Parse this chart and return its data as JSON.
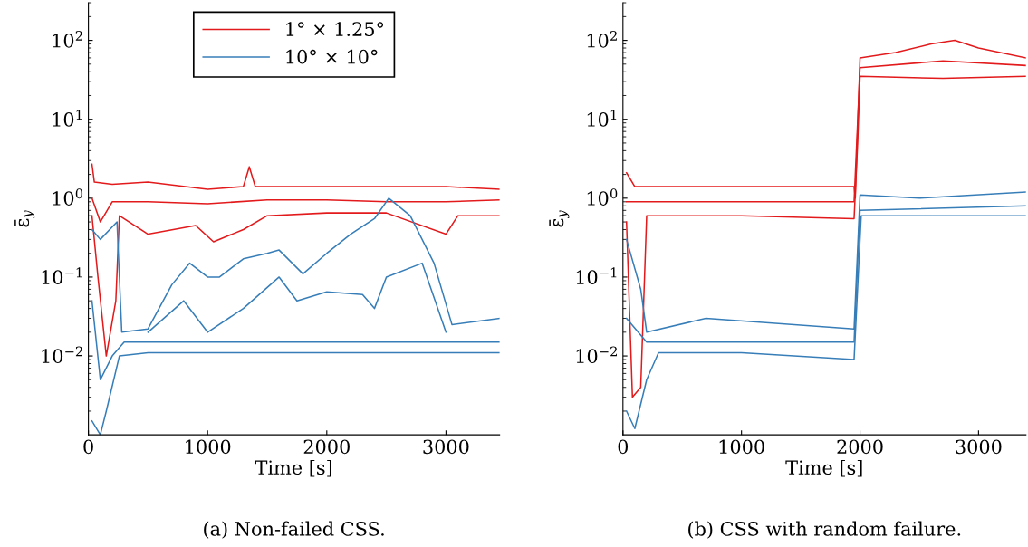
{
  "chart_data": [
    {
      "type": "line",
      "xlabel": "Time [s]",
      "ylabel": "ε̄$_{y}$",
      "log": "y",
      "grid": false,
      "legend": "top",
      "marker": "none",
      "line_style": "solid",
      "xlim": [
        0,
        3450
      ],
      "xticks": [
        0,
        1000,
        2000,
        3000
      ],
      "ylim": [
        0.001,
        300
      ],
      "yticks": [
        {
          "value": 0.01,
          "label": "10$^{−2}$"
        },
        {
          "value": 0.1,
          "label": "10$^{−1}$"
        },
        {
          "value": 1,
          "label": "10$^{0}$"
        },
        {
          "value": 10,
          "label": "10$^{1}$"
        },
        {
          "value": 100,
          "label": "10$^{2}$"
        }
      ],
      "annotations": [
        "(a) Non-failed CSS."
      ],
      "series": [
        {
          "name": "1° × 1.25°",
          "color": "#e31a1c",
          "x": [
            30,
            50,
            200,
            500,
            1000,
            1300,
            1350,
            1400,
            2000,
            2500,
            3000,
            3450
          ],
          "values": [
            2.7,
            1.6,
            1.5,
            1.6,
            1.3,
            1.4,
            2.5,
            1.4,
            1.4,
            1.4,
            1.4,
            1.3
          ]
        },
        {
          "color": "#e31a1c",
          "x": [
            30,
            100,
            200,
            500,
            1000,
            1500,
            2000,
            2500,
            3000,
            3450
          ],
          "values": [
            1.0,
            0.5,
            0.9,
            0.9,
            0.85,
            0.95,
            0.95,
            0.9,
            0.9,
            0.95
          ]
        },
        {
          "color": "#e31a1c",
          "x": [
            30,
            80,
            150,
            230,
            260,
            500,
            900,
            1050,
            1300,
            1500,
            2000,
            2500,
            3000,
            3100,
            3450
          ],
          "values": [
            0.6,
            0.1,
            0.01,
            0.05,
            0.6,
            0.35,
            0.45,
            0.28,
            0.4,
            0.6,
            0.65,
            0.65,
            0.35,
            0.6,
            0.6
          ]
        },
        {
          "name": "10° × 10°",
          "color": "#377eb8",
          "x": [
            30,
            100,
            240,
            280,
            500,
            700,
            850,
            1000,
            1100,
            1300,
            1500,
            1600,
            1800,
            2000,
            2200,
            2400,
            2520,
            2700,
            2900,
            3050,
            3450
          ],
          "values": [
            0.4,
            0.3,
            0.5,
            0.02,
            0.022,
            0.08,
            0.15,
            0.1,
            0.1,
            0.17,
            0.2,
            0.22,
            0.11,
            0.2,
            0.35,
            0.55,
            1.0,
            0.6,
            0.15,
            0.025,
            0.03
          ]
        },
        {
          "color": "#377eb8",
          "x": [
            500,
            800,
            1000,
            1300,
            1600,
            1750,
            2000,
            2300,
            2400,
            2500,
            2800,
            3000
          ],
          "values": [
            0.02,
            0.05,
            0.02,
            0.04,
            0.1,
            0.05,
            0.065,
            0.06,
            0.04,
            0.1,
            0.15,
            0.02
          ]
        },
        {
          "color": "#377eb8",
          "x": [
            30,
            100,
            200,
            300,
            1000,
            2000,
            3000,
            3450
          ],
          "values": [
            0.05,
            0.005,
            0.01,
            0.015,
            0.015,
            0.015,
            0.015,
            0.015
          ]
        },
        {
          "color": "#377eb8",
          "x": [
            30,
            100,
            150,
            260,
            500,
            1000,
            2000,
            3000,
            3450
          ],
          "values": [
            0.0015,
            0.001,
            0.002,
            0.01,
            0.011,
            0.011,
            0.011,
            0.011,
            0.011
          ]
        }
      ]
    },
    {
      "type": "line",
      "xlabel": "Time [s]",
      "ylabel": "ε̄$_{y}$",
      "log": "y",
      "grid": false,
      "marker": "none",
      "line_style": "solid",
      "xlim": [
        0,
        3400
      ],
      "xticks": [
        0,
        1000,
        2000,
        3000
      ],
      "ylim": [
        0.001,
        300
      ],
      "yticks": [
        {
          "value": 0.01,
          "label": "10$^{−2}$"
        },
        {
          "value": 0.1,
          "label": "10$^{−1}$"
        },
        {
          "value": 1,
          "label": "10$^{0}$"
        },
        {
          "value": 10,
          "label": "10$^{1}$"
        },
        {
          "value": 100,
          "label": "10$^{2}$"
        }
      ],
      "annotations": [
        "(b) CSS with random failure."
      ],
      "series": [
        {
          "color": "#e31a1c",
          "x": [
            30,
            100,
            1000,
            1950,
            1960,
            2000,
            2300,
            2600,
            2800,
            3000,
            3400
          ],
          "values": [
            2.1,
            1.4,
            1.4,
            1.4,
            1.0,
            60,
            70,
            90,
            100,
            80,
            60
          ]
        },
        {
          "color": "#e31a1c",
          "x": [
            30,
            1000,
            1950,
            2000,
            2700,
            3400
          ],
          "values": [
            0.9,
            0.9,
            0.9,
            45,
            55,
            48
          ]
        },
        {
          "color": "#e31a1c",
          "x": [
            30,
            80,
            150,
            200,
            1000,
            1950,
            1980,
            2000,
            2700,
            3400
          ],
          "values": [
            0.5,
            0.003,
            0.004,
            0.6,
            0.6,
            0.55,
            5,
            35,
            33,
            35
          ]
        },
        {
          "color": "#377eb8",
          "x": [
            30,
            150,
            200,
            700,
            1950,
            2000,
            2500,
            3400
          ],
          "values": [
            0.3,
            0.07,
            0.02,
            0.03,
            0.022,
            1.1,
            1.0,
            1.2
          ]
        },
        {
          "color": "#377eb8",
          "x": [
            30,
            200,
            1000,
            1950,
            2000,
            3400
          ],
          "values": [
            0.03,
            0.015,
            0.015,
            0.015,
            0.7,
            0.8
          ]
        },
        {
          "color": "#377eb8",
          "x": [
            30,
            100,
            200,
            300,
            1000,
            1950,
            2010,
            3400
          ],
          "values": [
            0.002,
            0.0012,
            0.005,
            0.011,
            0.011,
            0.009,
            0.6,
            0.6
          ]
        }
      ]
    }
  ]
}
